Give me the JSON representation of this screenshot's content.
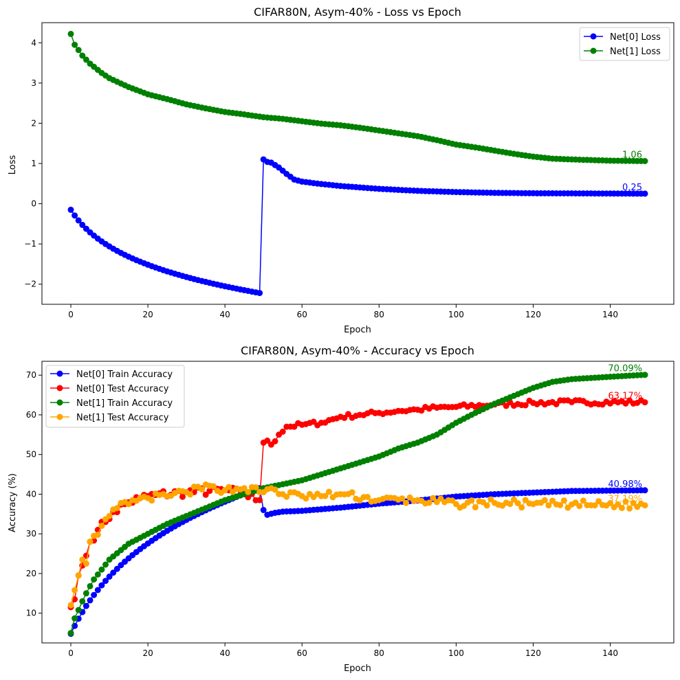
{
  "chart_data": [
    {
      "type": "line",
      "title": "CIFAR80N, Asym-40% - Loss vs Epoch",
      "xlabel": "Epoch",
      "ylabel": "Loss",
      "xlim": [
        -7.5,
        156.5
      ],
      "ylim": [
        -2.5,
        4.5
      ],
      "xticks": [
        0,
        20,
        40,
        60,
        80,
        100,
        120,
        140
      ],
      "yticks": [
        -2,
        -1,
        0,
        1,
        2,
        3,
        4
      ],
      "grid": false,
      "legend": "top-right",
      "epochs": 150,
      "series": [
        {
          "name": "Net[0] Loss",
          "color": "#0000ff",
          "end_label": "0.25",
          "segments": [
            {
              "x0": 0,
              "x1": 49,
              "kind": "log_decay",
              "y_start": -0.15,
              "y_end": -2.22,
              "curv": 8
            },
            {
              "x0": 50,
              "x1": 149,
              "kind": "keys",
              "keys": [
                [
                  50,
                  1.1
                ],
                [
                  51,
                  1.04
                ],
                [
                  52,
                  1.02
                ],
                [
                  54,
                  0.9
                ],
                [
                  56,
                  0.74
                ],
                [
                  58,
                  0.6
                ],
                [
                  60,
                  0.55
                ],
                [
                  64,
                  0.5
                ],
                [
                  70,
                  0.44
                ],
                [
                  80,
                  0.37
                ],
                [
                  90,
                  0.32
                ],
                [
                  100,
                  0.29
                ],
                [
                  110,
                  0.27
                ],
                [
                  120,
                  0.26
                ],
                [
                  149,
                  0.25
                ]
              ]
            }
          ]
        },
        {
          "name": "Net[1] Loss",
          "color": "#008000",
          "end_label": "1.06",
          "segments": [
            {
              "x0": 0,
              "x1": 149,
              "kind": "keys",
              "keys": [
                [
                  0,
                  4.22
                ],
                [
                  1,
                  3.95
                ],
                [
                  2,
                  3.82
                ],
                [
                  3,
                  3.68
                ],
                [
                  5,
                  3.48
                ],
                [
                  8,
                  3.25
                ],
                [
                  10,
                  3.12
                ],
                [
                  15,
                  2.9
                ],
                [
                  20,
                  2.72
                ],
                [
                  25,
                  2.6
                ],
                [
                  30,
                  2.47
                ],
                [
                  35,
                  2.37
                ],
                [
                  40,
                  2.28
                ],
                [
                  45,
                  2.22
                ],
                [
                  50,
                  2.15
                ],
                [
                  55,
                  2.11
                ],
                [
                  60,
                  2.05
                ],
                [
                  65,
                  1.99
                ],
                [
                  70,
                  1.95
                ],
                [
                  75,
                  1.89
                ],
                [
                  80,
                  1.82
                ],
                [
                  85,
                  1.75
                ],
                [
                  90,
                  1.68
                ],
                [
                  95,
                  1.58
                ],
                [
                  100,
                  1.47
                ],
                [
                  105,
                  1.4
                ],
                [
                  110,
                  1.32
                ],
                [
                  115,
                  1.24
                ],
                [
                  120,
                  1.17
                ],
                [
                  125,
                  1.12
                ],
                [
                  130,
                  1.1
                ],
                [
                  140,
                  1.07
                ],
                [
                  149,
                  1.06
                ]
              ]
            }
          ]
        }
      ]
    },
    {
      "type": "line",
      "title": "CIFAR80N, Asym-40% - Accuracy vs Epoch",
      "xlabel": "Epoch",
      "ylabel": "Accuracy (%)",
      "xlim": [
        -7.5,
        156.5
      ],
      "ylim": [
        2.5,
        73.5
      ],
      "xticks": [
        0,
        20,
        40,
        60,
        80,
        100,
        120,
        140
      ],
      "yticks": [
        10,
        20,
        30,
        40,
        50,
        60,
        70
      ],
      "grid": false,
      "legend": "top-left",
      "epochs": 150,
      "series": [
        {
          "name": "Net[0] Train Accuracy",
          "color": "#0000ff",
          "end_label": "40.98%",
          "segments": [
            {
              "x0": 0,
              "x1": 49,
              "kind": "log_decay",
              "y_start": 4.8,
              "y_end": 41.5,
              "curv": 5
            },
            {
              "x0": 50,
              "x1": 149,
              "kind": "keys",
              "keys": [
                [
                  50,
                  36.0
                ],
                [
                  51,
                  34.8
                ],
                [
                  53,
                  35.3
                ],
                [
                  55,
                  35.6
                ],
                [
                  60,
                  35.8
                ],
                [
                  70,
                  36.6
                ],
                [
                  80,
                  37.6
                ],
                [
                  90,
                  38.4
                ],
                [
                  100,
                  39.4
                ],
                [
                  110,
                  40.0
                ],
                [
                  120,
                  40.4
                ],
                [
                  130,
                  40.8
                ],
                [
                  149,
                  40.98
                ]
              ]
            }
          ]
        },
        {
          "name": "Net[0] Test Accuracy",
          "color": "#ff0000",
          "end_label": "63.17%",
          "seed": 7,
          "segments": [
            {
              "x0": 0,
              "x1": 49,
              "kind": "keys",
              "jitter": 1.2,
              "keys": [
                [
                  0,
                  11.5
                ],
                [
                  1,
                  13.5
                ],
                [
                  2,
                  19.5
                ],
                [
                  3,
                  22.0
                ],
                [
                  4,
                  24.5
                ],
                [
                  5,
                  28.0
                ],
                [
                  7,
                  31.0
                ],
                [
                  9,
                  33.0
                ],
                [
                  11,
                  35.5
                ],
                [
                  14,
                  37.5
                ],
                [
                  18,
                  39.0
                ],
                [
                  22,
                  39.8
                ],
                [
                  30,
                  40.5
                ],
                [
                  40,
                  41.0
                ],
                [
                  45,
                  40.0
                ],
                [
                  49,
                  38.5
                ]
              ]
            },
            {
              "x0": 50,
              "x1": 149,
              "kind": "keys",
              "jitter": 0.6,
              "keys": [
                [
                  50,
                  53.0
                ],
                [
                  51,
                  53.5
                ],
                [
                  52,
                  52.5
                ],
                [
                  54,
                  55.0
                ],
                [
                  56,
                  57.0
                ],
                [
                  60,
                  57.5
                ],
                [
                  65,
                  58.0
                ],
                [
                  70,
                  59.5
                ],
                [
                  75,
                  60.0
                ],
                [
                  80,
                  60.5
                ],
                [
                  85,
                  61.0
                ],
                [
                  90,
                  61.3
                ],
                [
                  95,
                  61.8
                ],
                [
                  100,
                  62.0
                ],
                [
                  110,
                  62.6
                ],
                [
                  120,
                  63.0
                ],
                [
                  130,
                  63.2
                ],
                [
                  149,
                  63.17
                ]
              ]
            }
          ]
        },
        {
          "name": "Net[1] Train Accuracy",
          "color": "#008000",
          "end_label": "70.09%",
          "segments": [
            {
              "x0": 0,
              "x1": 149,
              "kind": "keys",
              "keys": [
                [
                  0,
                  5.0
                ],
                [
                  1,
                  8.7
                ],
                [
                  2,
                  10.8
                ],
                [
                  3,
                  13.0
                ],
                [
                  4,
                  15.0
                ],
                [
                  5,
                  16.8
                ],
                [
                  6,
                  18.5
                ],
                [
                  8,
                  21.0
                ],
                [
                  10,
                  23.5
                ],
                [
                  15,
                  27.5
                ],
                [
                  20,
                  30.0
                ],
                [
                  25,
                  32.5
                ],
                [
                  30,
                  34.5
                ],
                [
                  35,
                  36.5
                ],
                [
                  40,
                  38.5
                ],
                [
                  45,
                  40.0
                ],
                [
                  50,
                  41.5
                ],
                [
                  55,
                  42.5
                ],
                [
                  60,
                  43.5
                ],
                [
                  65,
                  45.0
                ],
                [
                  70,
                  46.5
                ],
                [
                  75,
                  48.0
                ],
                [
                  80,
                  49.5
                ],
                [
                  85,
                  51.5
                ],
                [
                  90,
                  53.0
                ],
                [
                  95,
                  55.0
                ],
                [
                  100,
                  58.0
                ],
                [
                  105,
                  60.5
                ],
                [
                  110,
                  62.8
                ],
                [
                  115,
                  64.8
                ],
                [
                  120,
                  66.8
                ],
                [
                  125,
                  68.3
                ],
                [
                  130,
                  69.0
                ],
                [
                  140,
                  69.6
                ],
                [
                  149,
                  70.09
                ]
              ]
            }
          ]
        },
        {
          "name": "Net[1] Test Accuracy",
          "color": "#ffa500",
          "end_label": "37.19%",
          "seed": 13,
          "segments": [
            {
              "x0": 0,
              "x1": 149,
              "kind": "keys",
              "jitter": 1.0,
              "keys": [
                [
                  0,
                  12.0
                ],
                [
                  1,
                  15.8
                ],
                [
                  2,
                  19.5
                ],
                [
                  3,
                  23.5
                ],
                [
                  4,
                  22.5
                ],
                [
                  5,
                  28.0
                ],
                [
                  6,
                  29.5
                ],
                [
                  8,
                  32.0
                ],
                [
                  10,
                  34.5
                ],
                [
                  12,
                  36.5
                ],
                [
                  15,
                  37.5
                ],
                [
                  20,
                  39.0
                ],
                [
                  25,
                  39.5
                ],
                [
                  30,
                  40.5
                ],
                [
                  37,
                  42.0
                ],
                [
                  40,
                  41.0
                ],
                [
                  45,
                  41.5
                ],
                [
                  50,
                  40.5
                ],
                [
                  52,
                  41.5
                ],
                [
                  55,
                  40.0
                ],
                [
                  60,
                  39.5
                ],
                [
                  65,
                  39.5
                ],
                [
                  70,
                  40.0
                ],
                [
                  80,
                  38.5
                ],
                [
                  90,
                  38.5
                ],
                [
                  100,
                  37.5
                ],
                [
                  110,
                  37.8
                ],
                [
                  120,
                  37.5
                ],
                [
                  130,
                  37.4
                ],
                [
                  149,
                  37.19
                ]
              ]
            }
          ]
        }
      ]
    }
  ]
}
